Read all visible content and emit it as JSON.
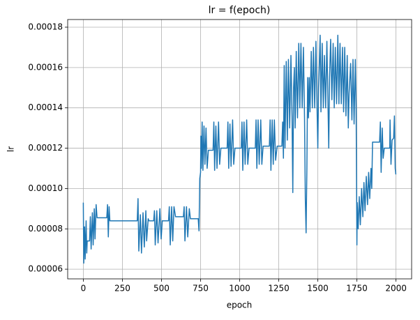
{
  "chart_data": {
    "type": "line",
    "title": "lr = f(epoch)",
    "x_label": "epoch",
    "y_label": "lr",
    "color": "#1f77b4",
    "grid": true,
    "xlim": [
      -100,
      2100
    ],
    "xticks": [
      0,
      250,
      500,
      750,
      1000,
      1250,
      1500,
      1750,
      2000
    ],
    "ylim": [
      5.52e-05,
      0.0001838
    ],
    "yticks": [
      6e-05,
      8e-05,
      {
        "value": 0.0001,
        "label": "0.00010"
      },
      0.00012,
      0.00014,
      0.00016,
      0.00018
    ],
    "x": [
      0,
      3,
      8,
      12,
      18,
      22,
      25,
      40,
      45,
      50,
      58,
      63,
      70,
      75,
      82,
      88,
      150,
      155,
      160,
      165,
      170,
      345,
      350,
      355,
      365,
      372,
      382,
      390,
      400,
      405,
      415,
      420,
      450,
      455,
      460,
      470,
      478,
      490,
      498,
      505,
      545,
      550,
      556,
      565,
      572,
      580,
      590,
      640,
      645,
      650,
      660,
      668,
      678,
      685,
      735,
      740,
      745,
      750,
      752,
      755,
      760,
      765,
      772,
      778,
      785,
      792,
      800,
      830,
      835,
      840,
      848,
      855,
      865,
      872,
      880,
      920,
      925,
      930,
      938,
      945,
      955,
      962,
      970,
      1010,
      1015,
      1020,
      1028,
      1035,
      1045,
      1052,
      1060,
      1100,
      1105,
      1110,
      1118,
      1125,
      1135,
      1142,
      1150,
      1190,
      1195,
      1200,
      1208,
      1215,
      1222,
      1230,
      1240,
      1270,
      1275,
      1280,
      1285,
      1290,
      1298,
      1305,
      1312,
      1320,
      1328,
      1335,
      1340,
      1345,
      1350,
      1355,
      1362,
      1370,
      1378,
      1385,
      1392,
      1400,
      1408,
      1415,
      1420,
      1425,
      1430,
      1435,
      1440,
      1445,
      1450,
      1458,
      1465,
      1472,
      1480,
      1488,
      1495,
      1500,
      1505,
      1515,
      1520,
      1528,
      1535,
      1542,
      1550,
      1558,
      1565,
      1570,
      1575,
      1582,
      1590,
      1598,
      1605,
      1612,
      1620,
      1628,
      1635,
      1642,
      1650,
      1658,
      1665,
      1672,
      1680,
      1688,
      1695,
      1700,
      1710,
      1718,
      1725,
      1732,
      1740,
      1745,
      1750,
      1752,
      1758,
      1765,
      1772,
      1780,
      1788,
      1795,
      1802,
      1810,
      1818,
      1825,
      1832,
      1840,
      1845,
      1850,
      1895,
      1900,
      1905,
      1912,
      1918,
      1925,
      1960,
      1962,
      1968,
      1975,
      1985,
      1990,
      1995,
      1999
    ],
    "values": [
      9.3e-05,
      6.3e-05,
      8.1e-05,
      6.5e-05,
      8.4e-05,
      6.8e-05,
      7.4e-05,
      7.4e-05,
      8.6e-05,
      7e-05,
      8.8e-05,
      7.2e-05,
      9e-05,
      7.5e-05,
      9.2e-05,
      8.55e-05,
      8.55e-05,
      9.2e-05,
      7.6e-05,
      9.1e-05,
      8.4e-05,
      8.4e-05,
      9.5e-05,
      6.9e-05,
      8.7e-05,
      6.8e-05,
      8.8e-05,
      7.1e-05,
      8.9e-05,
      7.4e-05,
      8.5e-05,
      8.4e-05,
      8.4e-05,
      8.9e-05,
      7.2e-05,
      8.9e-05,
      7.3e-05,
      9e-05,
      7.5e-05,
      8.4e-05,
      8.4e-05,
      9.1e-05,
      7.2e-05,
      9.1e-05,
      7.4e-05,
      9.1e-05,
      8.6e-05,
      8.6e-05,
      9.1e-05,
      7.4e-05,
      9.1e-05,
      7.6e-05,
      9e-05,
      8.5e-05,
      8.5e-05,
      7.9e-05,
      0.000105,
      0.000108,
      0.000126,
      0.00011,
      0.000133,
      0.000109,
      0.000131,
      0.000112,
      0.00013,
      0.00011,
      0.000119,
      0.000119,
      0.000133,
      0.000109,
      0.000131,
      0.00011,
      0.000133,
      0.000112,
      0.00012,
      0.00012,
      0.000133,
      0.00011,
      0.000132,
      0.000111,
      0.000134,
      0.000112,
      0.00012,
      0.00012,
      0.000133,
      0.000109,
      0.000133,
      0.000112,
      0.000134,
      0.000112,
      0.00012,
      0.00012,
      0.000134,
      0.00011,
      0.000134,
      0.000112,
      0.000134,
      0.000112,
      0.000121,
      0.000121,
      0.000134,
      0.000109,
      0.000134,
      0.000112,
      0.000134,
      0.000114,
      0.000121,
      0.000121,
      0.000133,
      0.000115,
      0.000161,
      0.00012,
      0.000163,
      0.000124,
      0.000164,
      0.00013,
      0.000166,
      0.000136,
      9.8e-05,
      0.00015,
      0.00016,
      0.00013,
      0.000168,
      0.000135,
      0.000172,
      0.00014,
      0.000172,
      0.00014,
      0.00017,
      0.000135,
      9.5e-05,
      7.8e-05,
      0.00011,
      0.000155,
      0.000135,
      0.000155,
      0.000138,
      0.000168,
      0.00014,
      0.00017,
      0.00014,
      0.000173,
      0.00014,
      0.00012,
      0.00015,
      0.000176,
      0.000138,
      0.000172,
      0.00014,
      0.000166,
      0.00014,
      0.000173,
      0.000142,
      0.00012,
      0.000155,
      0.000174,
      0.000144,
      0.000172,
      0.00014,
      0.00017,
      0.000142,
      0.000176,
      0.000142,
      0.000172,
      0.000142,
      0.00017,
      0.000138,
      0.00017,
      0.000136,
      0.000166,
      0.00013,
      0.000147,
      0.000162,
      0.000134,
      0.000164,
      0.000132,
      0.000164,
      0.00014,
      7.2e-05,
      9.3e-05,
      8e-05,
      9.6e-05,
      8.2e-05,
      0.0001,
      8.6e-05,
      0.000103,
      8.9e-05,
      0.000106,
      9.2e-05,
      0.000108,
      9.5e-05,
      0.00011,
      0.0001,
      0.000123,
      0.000123,
      0.000133,
      0.000108,
      0.00013,
      0.000115,
      0.00012,
      0.00012,
      0.000134,
      0.000112,
      0.000124,
      0.000125,
      0.000136,
      0.00011,
      0.000107
    ]
  }
}
